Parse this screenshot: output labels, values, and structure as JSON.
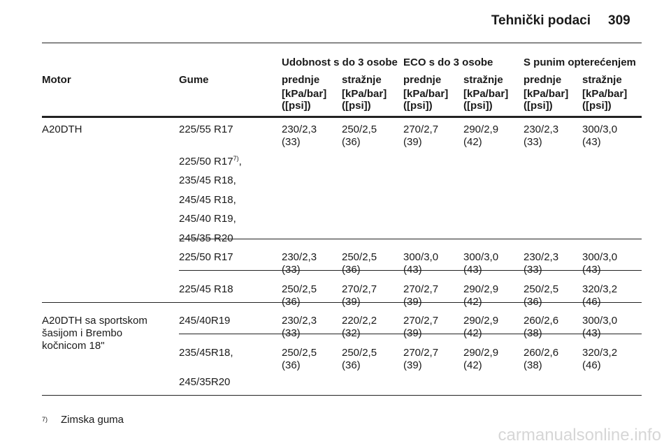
{
  "header": {
    "title": "Tehnički podaci",
    "page": "309"
  },
  "table": {
    "groups": [
      "Udobnost s do 3 osobe",
      "ECO s do 3 osobe",
      "S punim opterećenjem"
    ],
    "columns": [
      "Motor",
      "Gume",
      "prednje",
      "stražnje",
      "prednje",
      "stražnje",
      "prednje",
      "stražnje"
    ],
    "units": [
      [
        "[kPa/bar]",
        "([psi])"
      ],
      [
        "[kPa/bar]",
        "([psi])"
      ],
      [
        "[kPa/bar]",
        "([psi])"
      ],
      [
        "[kPa/bar]",
        "([psi])"
      ],
      [
        "[kPa/bar]",
        "([psi])"
      ],
      [
        "[kPa/bar]",
        "([psi])"
      ]
    ],
    "sections": [
      {
        "motor": [
          "A20DTH"
        ],
        "rows": [
          {
            "tyres": [
              "225/55 R17"
            ],
            "values": [
              [
                "230/2,3",
                "(33)"
              ],
              [
                "250/2,5",
                "(36)"
              ],
              [
                "270/2,7",
                "(39)"
              ],
              [
                "290/2,9",
                "(42)"
              ],
              [
                "230/2,3",
                "(33)"
              ],
              [
                "300/3,0",
                "(43)"
              ]
            ]
          },
          {
            "tyres": [
              [
                "225/50 R17",
                "7)",
                ","
              ],
              "235/45 R18,",
              "245/45 R18,",
              "245/40 R19,",
              "245/35 R20"
            ],
            "values": []
          },
          {
            "tyres": [
              "225/50 R17"
            ],
            "values": [
              [
                "230/2,3",
                "(33)"
              ],
              [
                "250/2,5",
                "(36)"
              ],
              [
                "300/3,0",
                "(43)"
              ],
              [
                "300/3,0",
                "(43)"
              ],
              [
                "230/2,3",
                "(33)"
              ],
              [
                "300/3,0",
                "(43)"
              ]
            ]
          },
          {
            "tyres": [
              "225/45 R18"
            ],
            "values": [
              [
                "250/2,5",
                "(36)"
              ],
              [
                "270/2,7",
                "(39)"
              ],
              [
                "270/2,7",
                "(39)"
              ],
              [
                "290/2,9",
                "(42)"
              ],
              [
                "250/2,5",
                "(36)"
              ],
              [
                "320/3,2",
                "(46)"
              ]
            ]
          }
        ]
      },
      {
        "motor": [
          "A20DTH sa sportskom",
          "šasijom i Brembo",
          "kočnicom 18\""
        ],
        "rows": [
          {
            "tyres": [
              "245/40R19"
            ],
            "values": [
              [
                "230/2,3",
                "(33)"
              ],
              [
                "220/2,2",
                "(32)"
              ],
              [
                "270/2,7",
                "(39)"
              ],
              [
                "290/2,9",
                "(42)"
              ],
              [
                "260/2,6",
                "(38)"
              ],
              [
                "300/3,0",
                "(43)"
              ]
            ]
          },
          {
            "tyres": [
              "235/45R18,",
              "245/35R20"
            ],
            "values": [
              [
                "250/2,5",
                "(36)"
              ],
              [
                "250/2,5",
                "(36)"
              ],
              [
                "270/2,7",
                "(39)"
              ],
              [
                "290/2,9",
                "(42)"
              ],
              [
                "260/2,6",
                "(38)"
              ],
              [
                "320/3,2",
                "(46)"
              ]
            ]
          }
        ]
      }
    ]
  },
  "footnote": {
    "mark": "7)",
    "text": "Zimska guma"
  },
  "watermark": "carmanualsonline.info"
}
